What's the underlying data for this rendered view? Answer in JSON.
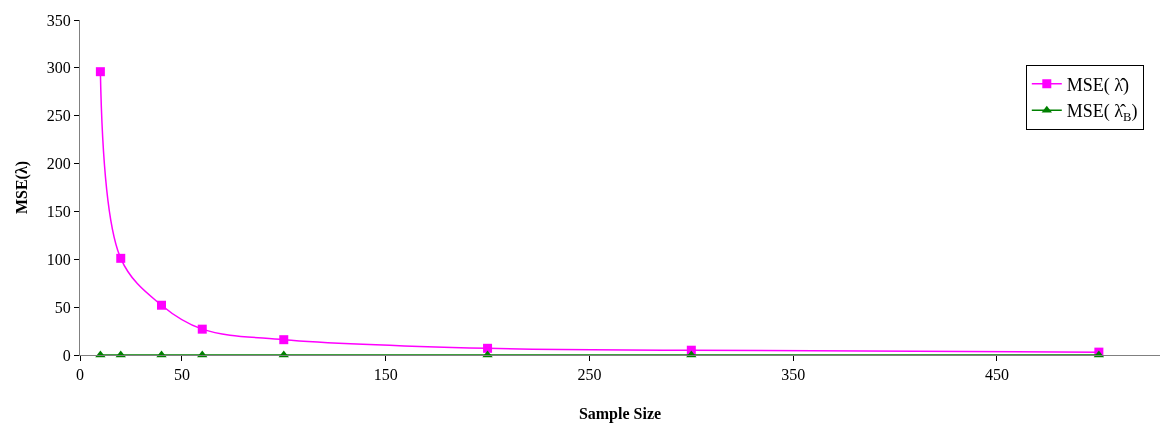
{
  "chart_data": {
    "type": "line",
    "xlabel": "Sample Size",
    "ylabel": "MSE(λ)",
    "x": [
      10,
      20,
      40,
      60,
      100,
      200,
      300,
      500
    ],
    "series": [
      {
        "name": "MSE( λ̂)",
        "color": "#ff00ff",
        "marker": "square",
        "values": [
          296,
          101,
          52,
          27,
          16,
          7,
          5,
          3
        ]
      },
      {
        "name": "MSE( λ̂$_{B}$)",
        "color": "#008000",
        "marker": "triangle",
        "values": [
          0,
          0,
          0,
          0,
          0,
          0,
          0,
          0
        ]
      }
    ],
    "xlim": [
      0,
      530
    ],
    "xticks": [
      0,
      50,
      150,
      250,
      350,
      450
    ],
    "ylim": [
      0,
      350
    ],
    "yticks": [
      0,
      50,
      100,
      150,
      200,
      250,
      300,
      350
    ],
    "legend": "right"
  }
}
